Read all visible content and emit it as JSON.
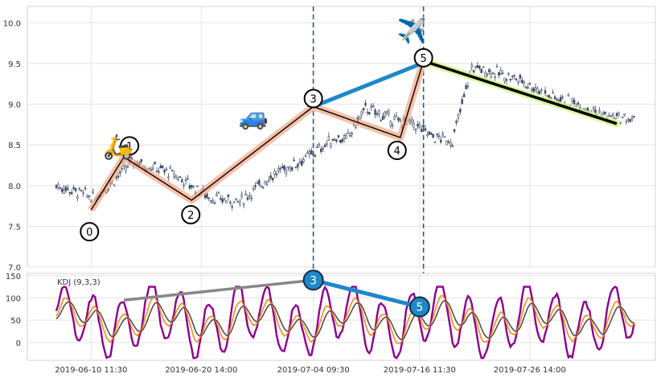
{
  "chart_data": [
    {
      "type": "candlestick",
      "panel": "price",
      "ylim": [
        7.0,
        10.2
      ],
      "yticks": [
        "7.0",
        "7.5",
        "8.0",
        "8.5",
        "9.0",
        "9.5",
        "10.0"
      ],
      "grid": true,
      "x_category_count": 300,
      "price_approx": {
        "x": [
          0,
          20,
          40,
          60,
          80,
          95,
          110,
          130,
          145,
          150,
          160,
          175,
          185,
          195,
          205,
          215,
          225,
          240,
          255,
          270,
          285,
          300
        ],
        "close": [
          8.0,
          7.85,
          8.3,
          8.15,
          7.85,
          7.8,
          8.1,
          8.35,
          8.6,
          8.55,
          8.95,
          8.8,
          8.75,
          8.6,
          8.55,
          9.45,
          9.4,
          9.3,
          9.1,
          9.0,
          8.85,
          8.8
        ]
      },
      "colors": {
        "candle": "#3b4a63"
      },
      "pattern": {
        "points": [
          {
            "label": "0",
            "x": 18,
            "y": 7.7
          },
          {
            "label": "1",
            "x": 35,
            "y": 8.35
          },
          {
            "label": "2",
            "x": 70,
            "y": 7.82
          },
          {
            "label": "3",
            "x": 133,
            "y": 8.97
          },
          {
            "label": "4",
            "x": 178,
            "y": 8.59
          },
          {
            "label": "5",
            "x": 190,
            "y": 9.53
          }
        ],
        "trend_line": {
          "from_x": 190,
          "from_y": 9.53,
          "to_x": 290,
          "to_y": 8.76
        },
        "divergence_line": {
          "from_x": 133,
          "from_y": 8.97,
          "to_x": 187,
          "to_y": 9.48
        },
        "icons": [
          {
            "name": "scooter-icon",
            "glyph": "🛵",
            "x": 32,
            "y": 8.38
          },
          {
            "name": "car-icon",
            "glyph": "🚙",
            "x": 102,
            "y": 8.75
          },
          {
            "name": "airplane-icon",
            "glyph": "✈️",
            "x": 184,
            "y": 9.8
          }
        ],
        "colors": {
          "zigzag": "#000000",
          "zigzag_halo": "#f4a583",
          "divergence": "#1e88c9",
          "trend": "#000000",
          "trend_halo": "#d4f58a"
        }
      },
      "vlines": [
        {
          "x": 133,
          "color": "#3a5570"
        },
        {
          "x": 190,
          "color": "#3a5570"
        }
      ]
    },
    {
      "type": "line",
      "panel": "indicator",
      "title": "KDJ (9,3,3)",
      "ylim": [
        -40,
        155
      ],
      "yticks": [
        "0",
        "50",
        "100",
        "150"
      ],
      "x_category_count": 300,
      "series": [
        {
          "key": "J",
          "color": "#8b008b"
        },
        {
          "key": "K",
          "color": "#f58b1e"
        },
        {
          "key": "D",
          "color": "#505050"
        }
      ],
      "divergence": {
        "line1": {
          "from_x": 35,
          "from_y": 95,
          "to_x": 133,
          "to_y": 140,
          "color": "#888888"
        },
        "line2": {
          "from_x": 133,
          "from_y": 140,
          "to_x": 188,
          "to_y": 80,
          "color": "#1e88c9"
        },
        "markers": [
          {
            "label": "3",
            "x": 133,
            "y": 140
          },
          {
            "label": "5",
            "x": 188,
            "y": 80
          }
        ]
      },
      "x_tick_labels": [
        {
          "x": 18,
          "label": "2019-06-10 11:30"
        },
        {
          "x": 75,
          "label": "2019-06-20 14:00"
        },
        {
          "x": 133,
          "label": "2019-07-04 09:30"
        },
        {
          "x": 188,
          "label": "2019-07-16 11:30"
        },
        {
          "x": 245,
          "label": "2019-07-26 14:00"
        }
      ]
    }
  ]
}
